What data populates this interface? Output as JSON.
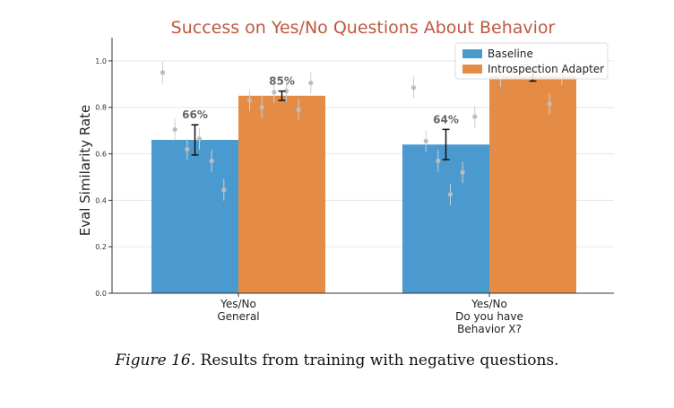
{
  "chart_data": {
    "type": "bar",
    "title": "Success on Yes/No Questions About Behavior",
    "ylabel": "Eval Similarity Rate",
    "xlabel": "",
    "ylim": [
      0,
      1.0
    ],
    "yticks": [
      "0.0",
      "0.2",
      "0.4",
      "0.6",
      "0.8",
      "1.0"
    ],
    "categories": [
      [
        "Yes/No",
        "General"
      ],
      [
        "Yes/No",
        "Do you have",
        "Behavior X?"
      ]
    ],
    "series": [
      {
        "name": "Baseline",
        "color": "#4a9acf",
        "values": [
          0.66,
          0.64
        ],
        "labels": [
          "66%",
          "64%"
        ],
        "err": [
          0.065,
          0.065
        ],
        "points": [
          [
            0.95,
            0.705,
            0.62,
            0.665,
            0.57,
            0.445
          ],
          [
            0.885,
            0.655,
            0.57,
            0.425,
            0.52,
            0.76
          ]
        ]
      },
      {
        "name": "Introspection Adapter",
        "color": "#e48c46",
        "values": [
          0.85,
          0.935
        ],
        "labels": [
          "85%",
          ""
        ],
        "err": [
          0.02,
          0.022
        ],
        "points": [
          [
            0.83,
            0.8,
            0.865,
            0.87,
            0.79,
            0.905
          ],
          [
            0.935,
            0.965,
            0.98,
            0.97,
            0.815,
            0.94
          ]
        ]
      }
    ],
    "legend": "top-right",
    "grid": "y"
  },
  "caption": {
    "figure": "Figure 16.",
    "text": "Results from training with negative questions."
  }
}
